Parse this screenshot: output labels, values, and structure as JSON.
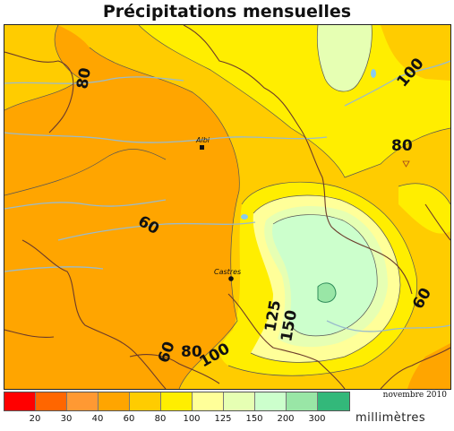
{
  "title": "Précipitations mensuelles",
  "period": "novembre 2010",
  "unit": "millimètres",
  "legend": {
    "colors": [
      "#ff0000",
      "#ff6600",
      "#ff9933",
      "#ffa500",
      "#ffcc00",
      "#ffee00",
      "#ffff99",
      "#e6ffb3",
      "#ccffcc",
      "#99e6a6",
      "#33b87a"
    ],
    "ticks": [
      "20",
      "30",
      "40",
      "60",
      "80",
      "100",
      "125",
      "150",
      "200",
      "300"
    ]
  },
  "contour_labels": [
    "80",
    "100",
    "80",
    "60",
    "60",
    "125",
    "150",
    "60",
    "80",
    "100"
  ],
  "cities": [
    {
      "name": "Albi"
    },
    {
      "name": "Castres"
    }
  ]
}
